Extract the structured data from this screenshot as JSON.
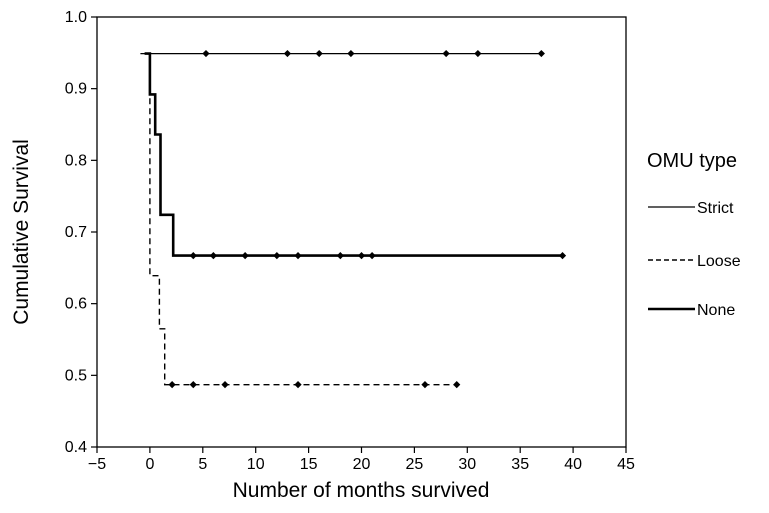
{
  "chart_data": {
    "type": "line",
    "subtype": "step (Kaplan-Meier survival curves with censoring markers)",
    "title": "",
    "xlabel": "Number of months survived",
    "ylabel": "Cumulative Survival",
    "xlim": [
      -5,
      45
    ],
    "ylim": [
      0.4,
      1.0
    ],
    "xticks": [
      "−5",
      "0",
      "5",
      "10",
      "15",
      "20",
      "25",
      "30",
      "35",
      "40",
      "45"
    ],
    "yticks": [
      "0.4",
      "0.5",
      "0.6",
      "0.7",
      "0.8",
      "0.9",
      "1.0"
    ],
    "grid": false,
    "legend": {
      "title": "OMU type",
      "placement": "right"
    },
    "series": [
      {
        "name": "Strict",
        "line_style": "thin-solid",
        "steps": [
          [
            -0.9,
            0.949
          ],
          [
            37,
            0.949
          ]
        ],
        "censored": [
          [
            5.3,
            0.949
          ],
          [
            13,
            0.949
          ],
          [
            16,
            0.949
          ],
          [
            19,
            0.949
          ],
          [
            28,
            0.949
          ],
          [
            31,
            0.949
          ],
          [
            37,
            0.949
          ]
        ]
      },
      {
        "name": "Loose",
        "line_style": "dashed",
        "steps": [
          [
            -0.5,
            0.949
          ],
          [
            0,
            0.949
          ],
          [
            0,
            0.639
          ],
          [
            0.9,
            0.639
          ],
          [
            0.9,
            0.565
          ],
          [
            1.4,
            0.565
          ],
          [
            1.4,
            0.487
          ],
          [
            29,
            0.487
          ]
        ],
        "censored": [
          [
            2.1,
            0.487
          ],
          [
            4.1,
            0.487
          ],
          [
            7.1,
            0.487
          ],
          [
            14,
            0.487
          ],
          [
            26,
            0.487
          ],
          [
            29,
            0.487
          ]
        ]
      },
      {
        "name": "None",
        "line_style": "thick-solid",
        "steps": [
          [
            -0.5,
            0.949
          ],
          [
            0,
            0.949
          ],
          [
            0,
            0.892
          ],
          [
            0.5,
            0.892
          ],
          [
            0.5,
            0.836
          ],
          [
            1,
            0.836
          ],
          [
            1,
            0.724
          ],
          [
            2.2,
            0.724
          ],
          [
            2.2,
            0.667
          ],
          [
            39,
            0.667
          ]
        ],
        "censored": [
          [
            4.1,
            0.667
          ],
          [
            6,
            0.667
          ],
          [
            9,
            0.667
          ],
          [
            12,
            0.667
          ],
          [
            14,
            0.667
          ],
          [
            18,
            0.667
          ],
          [
            20,
            0.667
          ],
          [
            21,
            0.667
          ],
          [
            39,
            0.667
          ]
        ]
      }
    ]
  }
}
